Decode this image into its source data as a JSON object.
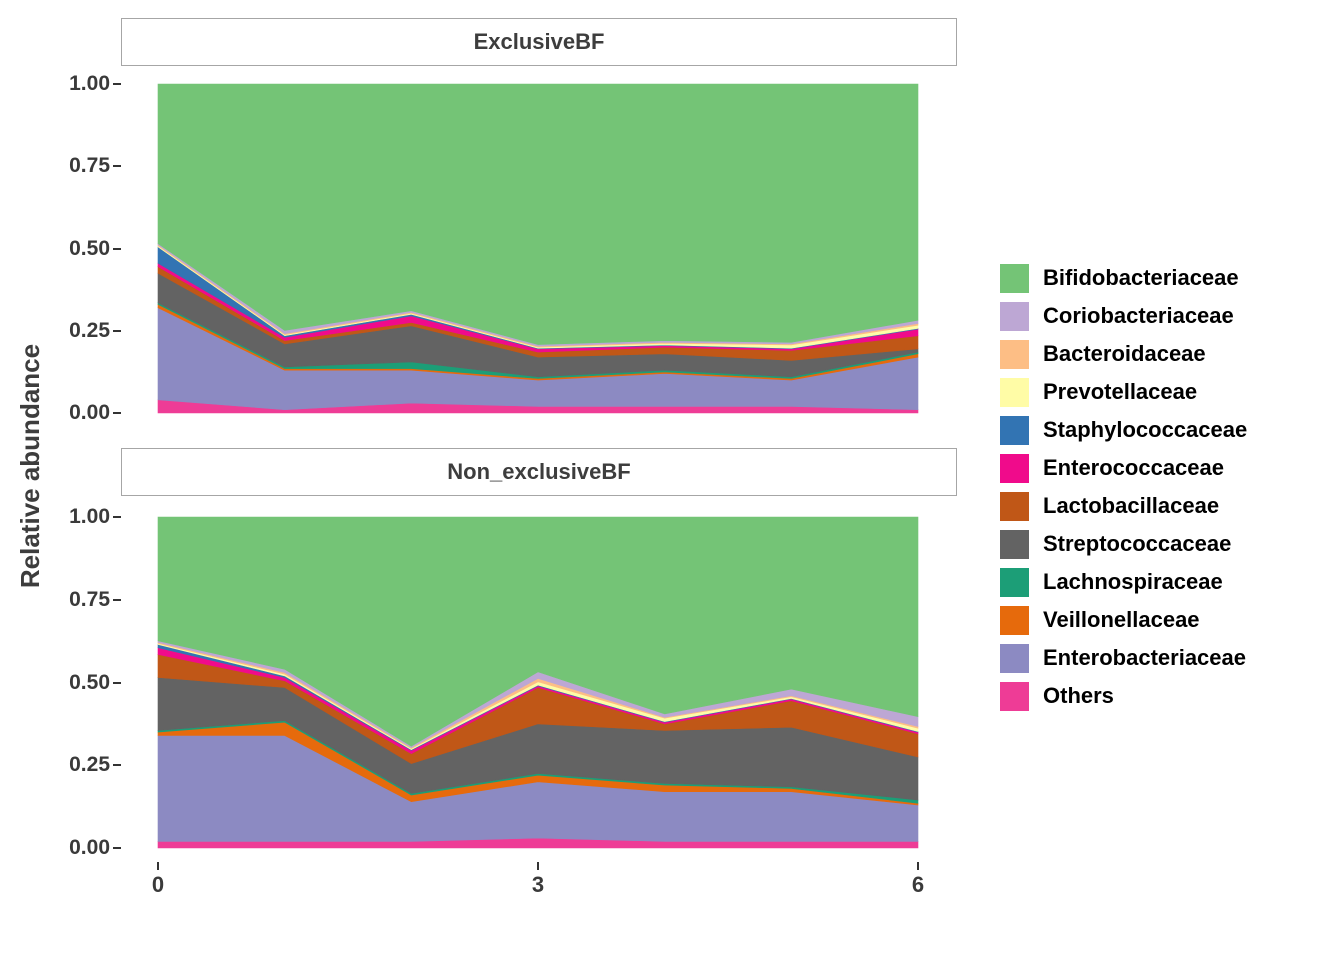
{
  "chart_data": {
    "type": "area",
    "stacked": true,
    "title": "",
    "ylabel": "Relative abundance",
    "xlabel": "",
    "grid": false,
    "legend_position": "right",
    "x": [
      0,
      1,
      2,
      3,
      4,
      5,
      6
    ],
    "x_ticks": [
      "0",
      "3",
      "6"
    ],
    "x_tick_values": [
      0,
      3,
      6
    ],
    "y_ticks": [
      "0.00",
      "0.25",
      "0.50",
      "0.75",
      "1.00"
    ],
    "y_tick_values": [
      0,
      0.25,
      0.5,
      0.75,
      1
    ],
    "ylim": [
      0,
      1
    ],
    "legend": [
      {
        "label": "Bifidobacteriaceae",
        "color": "#74C476"
      },
      {
        "label": "Coriobacteriaceae",
        "color": "#BDA7D4"
      },
      {
        "label": "Bacteroidaceae",
        "color": "#FDBE85"
      },
      {
        "label": "Prevotellaceae",
        "color": "#FFFCA6"
      },
      {
        "label": "Staphylococcaceae",
        "color": "#3274B3"
      },
      {
        "label": "Enterococcaceae",
        "color": "#F00B8B"
      },
      {
        "label": "Lactobacillaceae",
        "color": "#C05717"
      },
      {
        "label": "Streptococcaceae",
        "color": "#636363"
      },
      {
        "label": "Lachnospiraceae",
        "color": "#1C9E77"
      },
      {
        "label": "Veillonellaceae",
        "color": "#E66A0C"
      },
      {
        "label": "Enterobacteriaceae",
        "color": "#8C8AC2"
      },
      {
        "label": "Others",
        "color": "#EE3C96"
      }
    ],
    "stack_order": "bottom-to-top is reverse of legend order",
    "facets": [
      {
        "label": "ExclusiveBF",
        "series": [
          {
            "name": "Others",
            "values": [
              0.04,
              0.01,
              0.03,
              0.02,
              0.02,
              0.02,
              0.01
            ]
          },
          {
            "name": "Enterobacteriaceae",
            "values": [
              0.28,
              0.12,
              0.1,
              0.08,
              0.1,
              0.08,
              0.16
            ]
          },
          {
            "name": "Veillonellaceae",
            "values": [
              0.01,
              0.005,
              0.005,
              0.005,
              0.005,
              0.005,
              0.01
            ]
          },
          {
            "name": "Lachnospiraceae",
            "values": [
              0.005,
              0.005,
              0.02,
              0.005,
              0.005,
              0.005,
              0.005
            ]
          },
          {
            "name": "Streptococcaceae",
            "values": [
              0.09,
              0.07,
              0.11,
              0.06,
              0.05,
              0.05,
              0.01
            ]
          },
          {
            "name": "Lactobacillaceae",
            "values": [
              0.02,
              0.01,
              0.01,
              0.015,
              0.02,
              0.03,
              0.04
            ]
          },
          {
            "name": "Enterococcaceae",
            "values": [
              0.01,
              0.01,
              0.02,
              0.01,
              0.005,
              0.005,
              0.02
            ]
          },
          {
            "name": "Staphylococcaceae",
            "values": [
              0.05,
              0.005,
              0.005,
              0.002,
              0.002,
              0.002,
              0.002
            ]
          },
          {
            "name": "Prevotellaceae",
            "values": [
              0.003,
              0.003,
              0.003,
              0.003,
              0.005,
              0.01,
              0.01
            ]
          },
          {
            "name": "Bacteroidaceae",
            "values": [
              0.003,
              0.003,
              0.003,
              0.003,
              0.003,
              0.003,
              0.005
            ]
          },
          {
            "name": "Coriobacteriaceae",
            "values": [
              0.004,
              0.01,
              0.005,
              0.005,
              0.005,
              0.005,
              0.01
            ]
          },
          {
            "name": "Bifidobacteriaceae",
            "values": [
              0.485,
              0.749,
              0.689,
              0.792,
              0.78,
              0.785,
              0.718
            ]
          }
        ]
      },
      {
        "label": "Non_exclusiveBF",
        "series": [
          {
            "name": "Others",
            "values": [
              0.02,
              0.02,
              0.02,
              0.03,
              0.02,
              0.02,
              0.02
            ]
          },
          {
            "name": "Enterobacteriaceae",
            "values": [
              0.32,
              0.32,
              0.12,
              0.17,
              0.15,
              0.15,
              0.11
            ]
          },
          {
            "name": "Veillonellaceae",
            "values": [
              0.01,
              0.04,
              0.02,
              0.02,
              0.02,
              0.01,
              0.005
            ]
          },
          {
            "name": "Lachnospiraceae",
            "values": [
              0.005,
              0.005,
              0.005,
              0.005,
              0.005,
              0.005,
              0.01
            ]
          },
          {
            "name": "Streptococcaceae",
            "values": [
              0.16,
              0.1,
              0.09,
              0.15,
              0.16,
              0.18,
              0.13
            ]
          },
          {
            "name": "Lactobacillaceae",
            "values": [
              0.07,
              0.02,
              0.03,
              0.11,
              0.02,
              0.08,
              0.07
            ]
          },
          {
            "name": "Enterococcaceae",
            "values": [
              0.02,
              0.01,
              0.01,
              0.005,
              0.005,
              0.005,
              0.005
            ]
          },
          {
            "name": "Staphylococcaceae",
            "values": [
              0.01,
              0.005,
              0.002,
              0.002,
              0.002,
              0.002,
              0.002
            ]
          },
          {
            "name": "Prevotellaceae",
            "values": [
              0.003,
              0.005,
              0.003,
              0.01,
              0.01,
              0.005,
              0.01
            ]
          },
          {
            "name": "Bacteroidaceae",
            "values": [
              0.003,
              0.005,
              0.003,
              0.01,
              0.003,
              0.003,
              0.005
            ]
          },
          {
            "name": "Coriobacteriaceae",
            "values": [
              0.005,
              0.01,
              0.005,
              0.02,
              0.01,
              0.02,
              0.03
            ]
          },
          {
            "name": "Bifidobacteriaceae",
            "values": [
              0.374,
              0.46,
              0.692,
              0.468,
              0.595,
              0.52,
              0.603
            ]
          }
        ]
      }
    ]
  }
}
